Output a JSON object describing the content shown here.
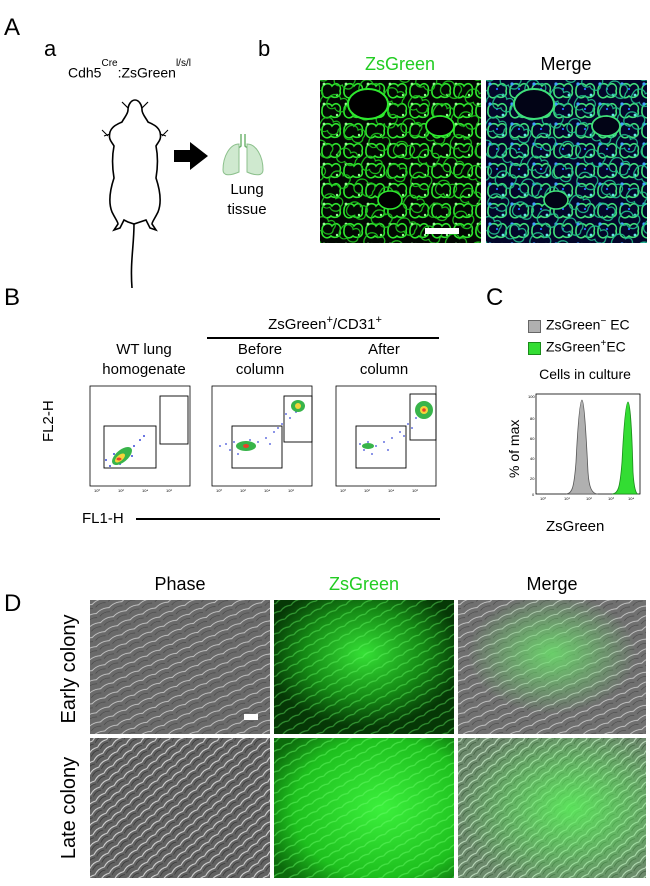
{
  "panel_A": {
    "letter": "A",
    "sub_a": "a",
    "sub_b": "b",
    "genotype_base": "Cdh5",
    "genotype_sup1": "Cre",
    "genotype_mid": ":ZsGreen",
    "genotype_sup2": "l/s/l",
    "lung_label_1": "Lung",
    "lung_label_2": "tissue",
    "col_zsgreen": "ZsGreen",
    "col_merge": "Merge"
  },
  "panel_B": {
    "letter": "B",
    "group_label": "ZsGreen",
    "group_sup1": "+",
    "group_mid": "/CD31",
    "group_sup2": "+",
    "col1_line1": "WT lung",
    "col1_line2": "homogenate",
    "col2_line1": "Before",
    "col2_line2": "column",
    "col3_line1": "After",
    "col3_line2": "column",
    "y_axis": "FL2-H",
    "x_axis": "FL1-H"
  },
  "panel_C": {
    "letter": "C",
    "legend_neg": "ZsGreen",
    "legend_neg_sup": "−",
    "legend_neg_suffix": " EC",
    "legend_pos": "ZsGreen",
    "legend_pos_sup": "+",
    "legend_pos_suffix": "EC",
    "subtitle": "Cells in culture",
    "y_axis": "% of max",
    "x_axis": "ZsGreen",
    "neg_color": "#b0b0b0",
    "pos_color": "#33dd33"
  },
  "panel_D": {
    "letter": "D",
    "col_phase": "Phase",
    "col_zsgreen": "ZsGreen",
    "col_merge": "Merge",
    "row_early": "Early colony",
    "row_late": "Late colony"
  }
}
